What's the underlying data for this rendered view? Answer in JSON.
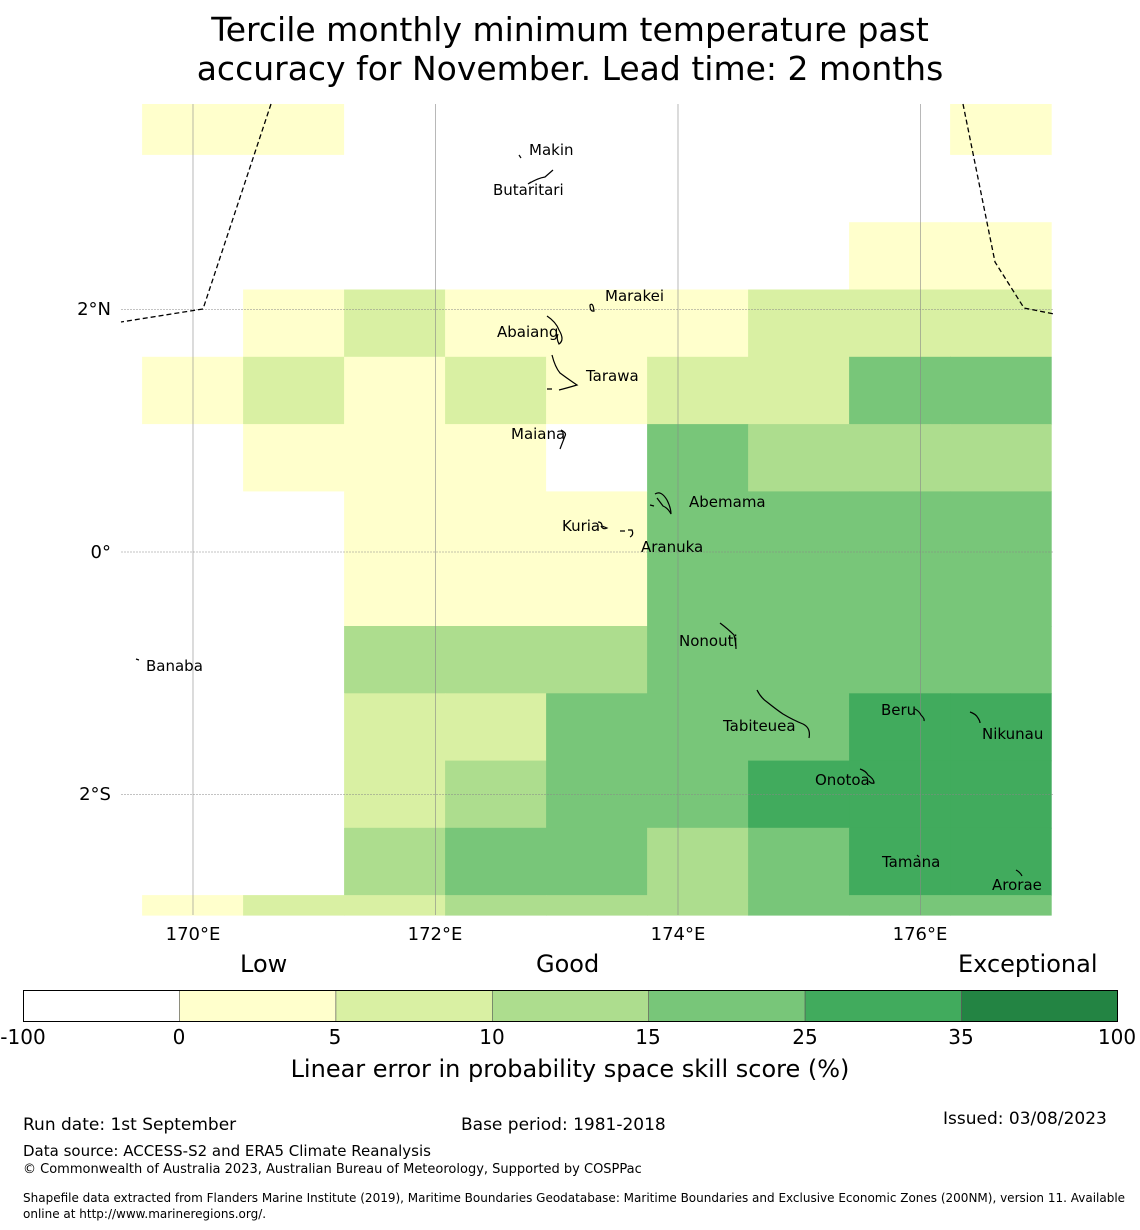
{
  "title": {
    "line1": "Tercile monthly minimum temperature past",
    "line2": "accuracy for November. Lead time: 2 months"
  },
  "map": {
    "lon_labels": [
      "170°E",
      "172°E",
      "174°E",
      "176°E"
    ],
    "lat_labels": [
      "2°N",
      "0°",
      "2°S"
    ],
    "places": [
      "Makin",
      "Butaritari",
      "Marakei",
      "Abaiang",
      "Tarawa",
      "Maiana",
      "Abemama",
      "Kuria",
      "Aranuka",
      "Nonouti",
      "Banaba",
      "Tabiteuea",
      "Beru",
      "Nikunau",
      "Onotoa",
      "Tamana",
      "Arorae"
    ],
    "grid": {
      "lon_start": 169.58,
      "lon_step": 0.833,
      "lat_start": 3.83,
      "lat_step": 0.555,
      "rows": [
        [
          1,
          1,
          0,
          0,
          0,
          0,
          0,
          0,
          1
        ],
        [
          0,
          0,
          0,
          0,
          0,
          0,
          0,
          0,
          0
        ],
        [
          0,
          0,
          0,
          0,
          0,
          0,
          0,
          1,
          1
        ],
        [
          0,
          1,
          2,
          1,
          1,
          1,
          2,
          2,
          2
        ],
        [
          1,
          2,
          1,
          2,
          1,
          2,
          2,
          4,
          4
        ],
        [
          0,
          1,
          1,
          1,
          0,
          4,
          3,
          3,
          3
        ],
        [
          0,
          0,
          1,
          1,
          1,
          4,
          4,
          4,
          4
        ],
        [
          0,
          0,
          1,
          1,
          1,
          4,
          4,
          4,
          4
        ],
        [
          0,
          0,
          3,
          3,
          3,
          4,
          4,
          4,
          4
        ],
        [
          0,
          0,
          2,
          2,
          4,
          4,
          4,
          5,
          5
        ],
        [
          0,
          0,
          2,
          3,
          4,
          4,
          5,
          5,
          5
        ],
        [
          0,
          0,
          3,
          4,
          4,
          3,
          4,
          5,
          5
        ],
        [
          1,
          2,
          2,
          3,
          3,
          3,
          4,
          4,
          4
        ]
      ]
    }
  },
  "colorbar": {
    "headings": [
      "Low",
      "Good",
      "Exceptional"
    ],
    "ticks": [
      "-100",
      "0",
      "5",
      "10",
      "15",
      "25",
      "35",
      "100"
    ],
    "colors": [
      "#ffffff",
      "#ffffcc",
      "#d9f0a3",
      "#addd8e",
      "#78c679",
      "#41ab5d",
      "#238443"
    ],
    "label": "Linear error in probability space skill score (%)"
  },
  "footer": {
    "run_date": "Run date: 1st September",
    "base_period": "Base period: 1981-2018",
    "issued": "Issued: 03/08/2023",
    "data_source": "Data source: ACCESS-S2 and ERA5 Climate Reanalysis",
    "copyright": "© Commonwealth of Australia 2023, Australian Bureau of Meteorology, Supported by COSPPac",
    "shapefile_line1": "Shapefile data extracted from Flanders Marine Institute (2019), Maritime Boundaries Geodatabase: Maritime Boundaries and Exclusive Economic Zones (200NM), version 11. Available",
    "shapefile_line2": "online at http://www.marineregions.org/."
  }
}
